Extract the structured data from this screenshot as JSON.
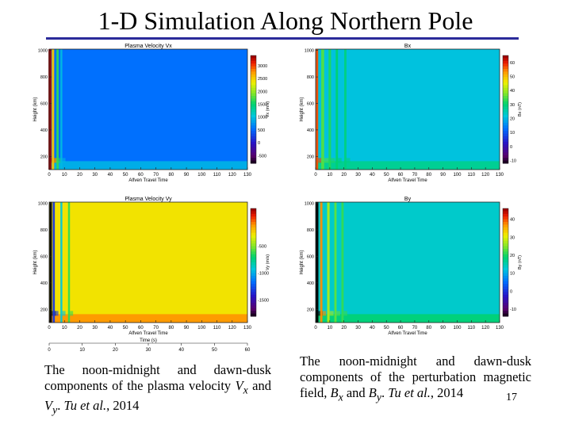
{
  "slide": {
    "title": "1-D Simulation Along Northern Pole",
    "slide_number": "17"
  },
  "captions": {
    "left": {
      "text": "The noon-midnight and dawn-dusk components of the plasma velocity",
      "sym1": "V",
      "sub1": "x",
      "and": " and ",
      "sym2": "V",
      "sub2": "y",
      "sep": ". ",
      "cite": "Tu et al.",
      "year": ", 2014"
    },
    "right": {
      "text": "The noon-midnight and dawn-dusk components of the perturbation magnetic field,",
      "sym1": "B",
      "sub1": "x",
      "and": " and ",
      "sym2": "B",
      "sub2": "y",
      "sep": ". ",
      "cite": "Tu et al.",
      "year": ", 2014"
    }
  },
  "chart_data": [
    {
      "id": "vx",
      "type": "heatmap",
      "title": "Plasma Velocity Vx",
      "xlabel": "Alfven Travel Time",
      "ylabel": "Height (km)",
      "colorbar_label": "Vx (m/s)",
      "x_ticks": [
        "0",
        "10",
        "20",
        "30",
        "40",
        "50",
        "60",
        "70",
        "80",
        "90",
        "100",
        "110",
        "120",
        "130"
      ],
      "xlim": [
        0,
        130
      ],
      "y_ticks": [
        "200",
        "400",
        "600",
        "800",
        "1000"
      ],
      "ylim": [
        100,
        1010
      ],
      "colorbar_ticks": [
        "3000",
        "2500",
        "2000",
        "1500",
        "1000",
        "500",
        "0",
        "-500"
      ],
      "clim": [
        -800,
        3400
      ],
      "background_value": 600,
      "transients": [
        {
          "t": 0.5,
          "value": 3400,
          "width": 1.2
        },
        {
          "t": 2.5,
          "value": 2600,
          "width": 1.0
        },
        {
          "t": 5.5,
          "value": 1700,
          "width": 0.9
        },
        {
          "t": 8,
          "value": 1000,
          "width": 0.8
        }
      ]
    },
    {
      "id": "bx",
      "type": "heatmap",
      "title": "Bx",
      "xlabel": "Alfven Travel Time",
      "ylabel": "Height (km)",
      "colorbar_label": "Bx (nT)",
      "x_ticks": [
        "0",
        "10",
        "20",
        "30",
        "40",
        "50",
        "60",
        "70",
        "80",
        "90",
        "100",
        "110",
        "120",
        "130"
      ],
      "xlim": [
        0,
        130
      ],
      "y_ticks": [
        "200",
        "400",
        "600",
        "800",
        "1000"
      ],
      "ylim": [
        100,
        1010
      ],
      "colorbar_ticks": [
        "60",
        "50",
        "40",
        "30",
        "20",
        "10",
        "0",
        "-10"
      ],
      "clim": [
        -12,
        65
      ],
      "background_value": 22,
      "transients": [
        {
          "t": 1,
          "value": 58,
          "width": 1.0
        },
        {
          "t": 5,
          "value": 36,
          "width": 1.3
        },
        {
          "t": 10,
          "value": 33,
          "width": 1.1
        },
        {
          "t": 15,
          "value": 31,
          "width": 1.0
        },
        {
          "t": 21,
          "value": 30,
          "width": 1.0
        }
      ]
    },
    {
      "id": "vy",
      "type": "heatmap",
      "title": "Plasma Velocity Vy",
      "xlabel": "Alfven Travel Time",
      "ylabel": "Height (km)",
      "colorbar_label": "Vy (m/s)",
      "x_ticks": [
        "0",
        "10",
        "20",
        "30",
        "40",
        "50",
        "60",
        "70",
        "80",
        "90",
        "100",
        "110",
        "120",
        "130"
      ],
      "xlim": [
        0,
        130
      ],
      "y_ticks": [
        "200",
        "400",
        "600",
        "800",
        "1000"
      ],
      "ylim": [
        100,
        1010
      ],
      "colorbar_ticks": [
        "-500",
        "-1000",
        "-1500"
      ],
      "clim": [
        -1800,
        200
      ],
      "background_value": -250,
      "transients": [
        {
          "t": 1,
          "value": -1800,
          "width": 1.0
        },
        {
          "t": 3,
          "value": -1300,
          "width": 0.9
        },
        {
          "t": 8,
          "value": -900,
          "width": 0.8
        },
        {
          "t": 13,
          "value": -600,
          "width": 0.8
        }
      ],
      "secondary_axis": {
        "label": "Time (s)",
        "ticks": [
          "0",
          "10",
          "20",
          "30",
          "40",
          "50",
          "60"
        ],
        "lim": [
          0,
          60
        ]
      }
    },
    {
      "id": "by",
      "type": "heatmap",
      "title": "By",
      "xlabel": "Alfven Travel Time",
      "ylabel": "Height (km)",
      "colorbar_label": "By (nT)",
      "x_ticks": [
        "0",
        "10",
        "20",
        "30",
        "40",
        "50",
        "60",
        "70",
        "80",
        "90",
        "100",
        "110",
        "120",
        "130"
      ],
      "xlim": [
        0,
        130
      ],
      "y_ticks": [
        "200",
        "400",
        "600",
        "800",
        "1000"
      ],
      "ylim": [
        100,
        1010
      ],
      "colorbar_ticks": [
        "40",
        "30",
        "20",
        "10",
        "0",
        "-10"
      ],
      "clim": [
        -14,
        46
      ],
      "background_value": 14,
      "transients": [
        {
          "t": 1,
          "value": -14,
          "width": 1.2
        },
        {
          "t": 4,
          "value": 38,
          "width": 1.0
        },
        {
          "t": 9,
          "value": 28,
          "width": 1.1
        },
        {
          "t": 14,
          "value": 24,
          "width": 1.0
        },
        {
          "t": 19,
          "value": 22,
          "width": 1.0
        }
      ]
    }
  ]
}
